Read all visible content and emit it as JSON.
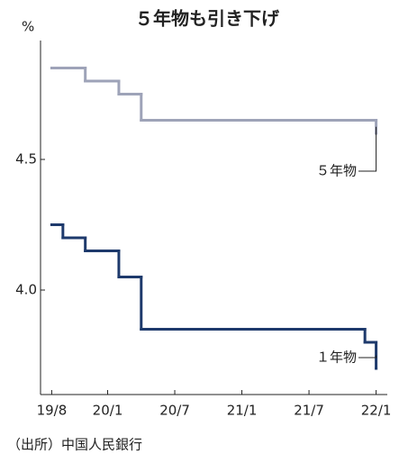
{
  "chart_data": {
    "type": "step-line",
    "title": "５年物も引き下げ",
    "y_unit": "%",
    "source": "（出所）中国人民銀行",
    "ylim": [
      3.6,
      5.0
    ],
    "yticks": [
      {
        "value": 4,
        "label": "4.0"
      },
      4.5
    ],
    "xlim": [
      "2019-07",
      "2022-02"
    ],
    "xticks": [
      {
        "value": "2019-08",
        "label": "19/8"
      },
      {
        "value": "2020-01",
        "label": "20/1"
      },
      {
        "value": "2020-07",
        "label": "20/7"
      },
      {
        "value": "2021-01",
        "label": "21/1"
      },
      {
        "value": "2021-07",
        "label": "21/7"
      },
      {
        "value": "2022-01",
        "label": "22/1"
      }
    ],
    "series": [
      {
        "name": "５年物",
        "color": "#9ea3b8",
        "x": [
          "2019-08",
          "2019-11",
          "2020-02",
          "2020-04",
          "2022-01"
        ],
        "values": [
          4.85,
          4.8,
          4.75,
          4.65,
          4.6
        ]
      },
      {
        "name": "１年物",
        "color": "#1e3a6c",
        "x": [
          "2019-08",
          "2019-09",
          "2019-11",
          "2020-02",
          "2020-04",
          "2021-12",
          "2022-01"
        ],
        "values": [
          4.25,
          4.2,
          4.15,
          4.05,
          3.85,
          3.8,
          3.7
        ]
      }
    ]
  }
}
